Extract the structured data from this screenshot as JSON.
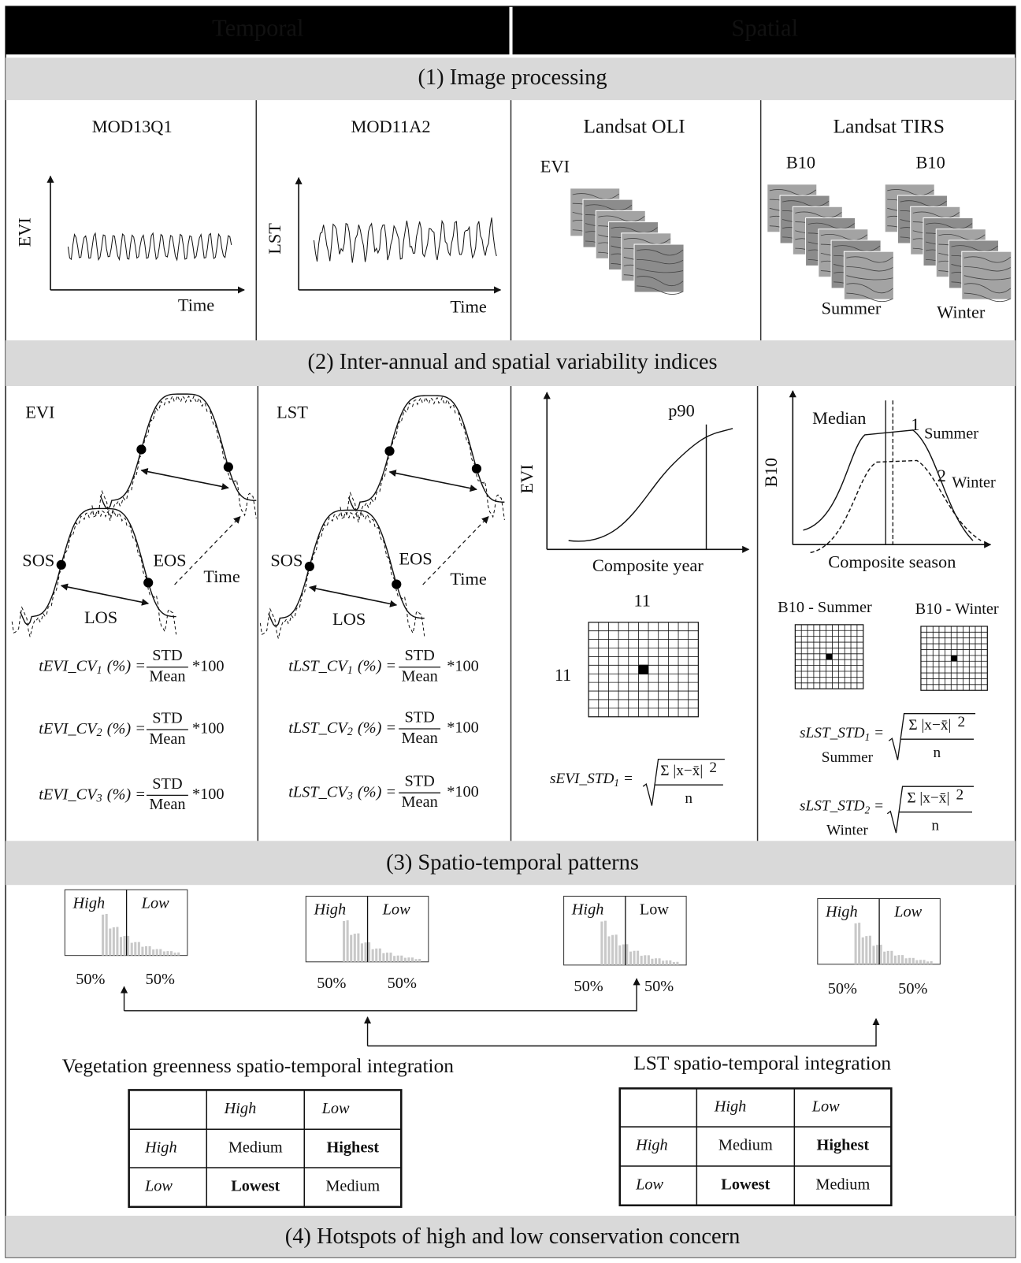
{
  "header": {
    "temporal": "Temporal",
    "spatial": "Spatial"
  },
  "sections": [
    "(1) Image processing",
    "(2) Inter-annual and spatial variability indices",
    "(3) Spatio-temporal patterns",
    "(4) Hotspots of high and low conservation concern"
  ],
  "image_processing": {
    "panels": [
      {
        "title": "MOD13Q1",
        "y_label": "EVI",
        "x_label": "Time"
      },
      {
        "title": "MOD11A2",
        "y_label": "LST",
        "x_label": "Time"
      },
      {
        "title": "Landsat OLI",
        "label": "EVI"
      },
      {
        "title": "Landsat TIRS",
        "labels": [
          "B10",
          "B10"
        ],
        "seasons": [
          "Summer",
          "Winter"
        ]
      }
    ]
  },
  "variability": {
    "temporal": [
      {
        "variable": "EVI",
        "sos": "SOS",
        "eos": "EOS",
        "los": "LOS",
        "time": "Time",
        "formulas": [
          {
            "name": "tEVI_CV",
            "sub": "1",
            "unit": "(%) =",
            "numerator": "STD",
            "denominator": "Mean",
            "factor": "*100"
          },
          {
            "name": "tEVI_CV",
            "sub": "2",
            "unit": "(%) =",
            "numerator": "STD",
            "denominator": "Mean",
            "factor": "*100"
          },
          {
            "name": "tEVI_CV",
            "sub": "3",
            "unit": "(%) =",
            "numerator": "STD",
            "denominator": "Mean",
            "factor": "*100"
          }
        ]
      },
      {
        "variable": "LST",
        "sos": "SOS",
        "eos": "EOS",
        "los": "LOS",
        "time": "Time",
        "formulas": [
          {
            "name": "tLST_CV",
            "sub": "1",
            "unit": "(%) =",
            "numerator": "STD",
            "denominator": "Mean",
            "factor": "*100"
          },
          {
            "name": "tLST_CV",
            "sub": "2",
            "unit": "(%) =",
            "numerator": "STD",
            "denominator": "Mean",
            "factor": "*100"
          },
          {
            "name": "tLST_CV",
            "sub": "3",
            "unit": "(%) =",
            "numerator": "STD",
            "denominator": "Mean",
            "factor": "*100"
          }
        ]
      }
    ],
    "spatial_evi": {
      "y_label": "EVI",
      "threshold": "p90",
      "x_label": "Composite year",
      "grid_cols": "11",
      "grid_rows": "11",
      "formula": {
        "name": "sEVI_STD",
        "sub": "1",
        "eq": "=",
        "numerator": "Σ |x−x̄|",
        "power": "2",
        "denominator": "n"
      }
    },
    "spatial_lst": {
      "y_label": "B10",
      "median": "Median",
      "curves": [
        {
          "index": "1",
          "name": "Summer"
        },
        {
          "index": "2",
          "name": "Winter"
        }
      ],
      "x_label": "Composite season",
      "grids": [
        "B10 - Summer",
        "B10 - Winter"
      ],
      "formulas": [
        {
          "name": "sLST_STD",
          "sub": "1",
          "eq": "=",
          "season": "Summer",
          "numerator": "Σ |x−x̄|",
          "power": "2",
          "denominator": "n"
        },
        {
          "name": "sLST_STD",
          "sub": "2",
          "eq": "=",
          "season": "Winter",
          "numerator": "Σ |x−x̄|",
          "power": "2",
          "denominator": "n"
        }
      ]
    }
  },
  "patterns": {
    "histograms": [
      {
        "high": "High",
        "low": "Low",
        "left": "50%",
        "right": "50%"
      },
      {
        "high": "High",
        "low": "Low",
        "left": "50%",
        "right": "50%"
      },
      {
        "high": "High",
        "low": "Low",
        "left": "50%",
        "right": "50%"
      },
      {
        "high": "High",
        "low": "Low",
        "left": "50%",
        "right": "50%"
      }
    ],
    "integrations": [
      {
        "title": "Vegetation greenness spatio-temporal integration",
        "table": {
          "columns": [
            "High",
            "Low"
          ],
          "rows": [
            {
              "label": "High",
              "cells": [
                "Medium",
                "Highest"
              ]
            },
            {
              "label": "Low",
              "cells": [
                "Lowest",
                "Medium"
              ]
            }
          ]
        }
      },
      {
        "title": "LST spatio-temporal integration",
        "table": {
          "columns": [
            "High",
            "Low"
          ],
          "rows": [
            {
              "label": "High",
              "cells": [
                "Medium",
                "Highest"
              ]
            },
            {
              "label": "Low",
              "cells": [
                "Lowest",
                "Medium"
              ]
            }
          ]
        }
      }
    ]
  }
}
